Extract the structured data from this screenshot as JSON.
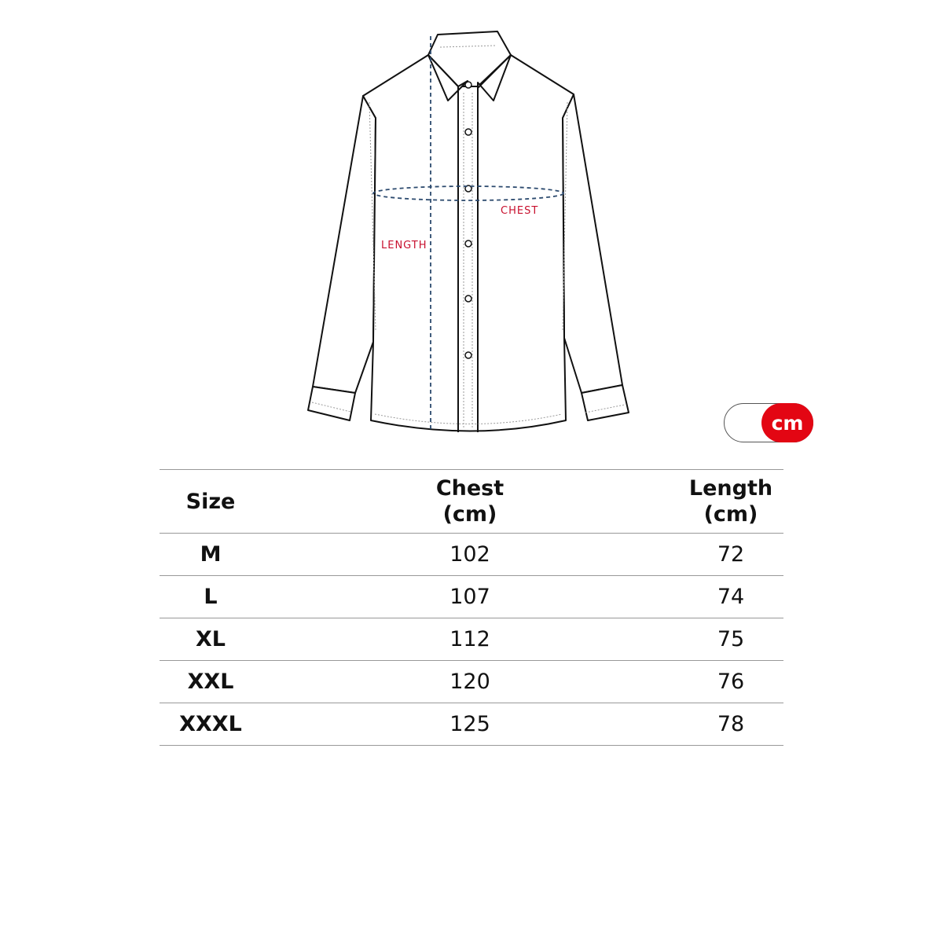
{
  "diagram": {
    "length_label": "LENGTH",
    "chest_label": "CHEST",
    "label_color": "#c8102e",
    "measure_line_color": "#2c4a6e"
  },
  "unit_toggle": {
    "selected": "cm",
    "active_color": "#e30613"
  },
  "size_table": {
    "headers": [
      {
        "label": "Size",
        "unit": ""
      },
      {
        "label": "Chest",
        "unit": "(cm)"
      },
      {
        "label": "Length",
        "unit": "(cm)"
      }
    ],
    "rows": [
      {
        "size": "M",
        "chest": "102",
        "length": "72"
      },
      {
        "size": "L",
        "chest": "107",
        "length": "74"
      },
      {
        "size": "XL",
        "chest": "112",
        "length": "75"
      },
      {
        "size": "XXL",
        "chest": "120",
        "length": "76"
      },
      {
        "size": "XXXL",
        "chest": "125",
        "length": "78"
      }
    ]
  }
}
